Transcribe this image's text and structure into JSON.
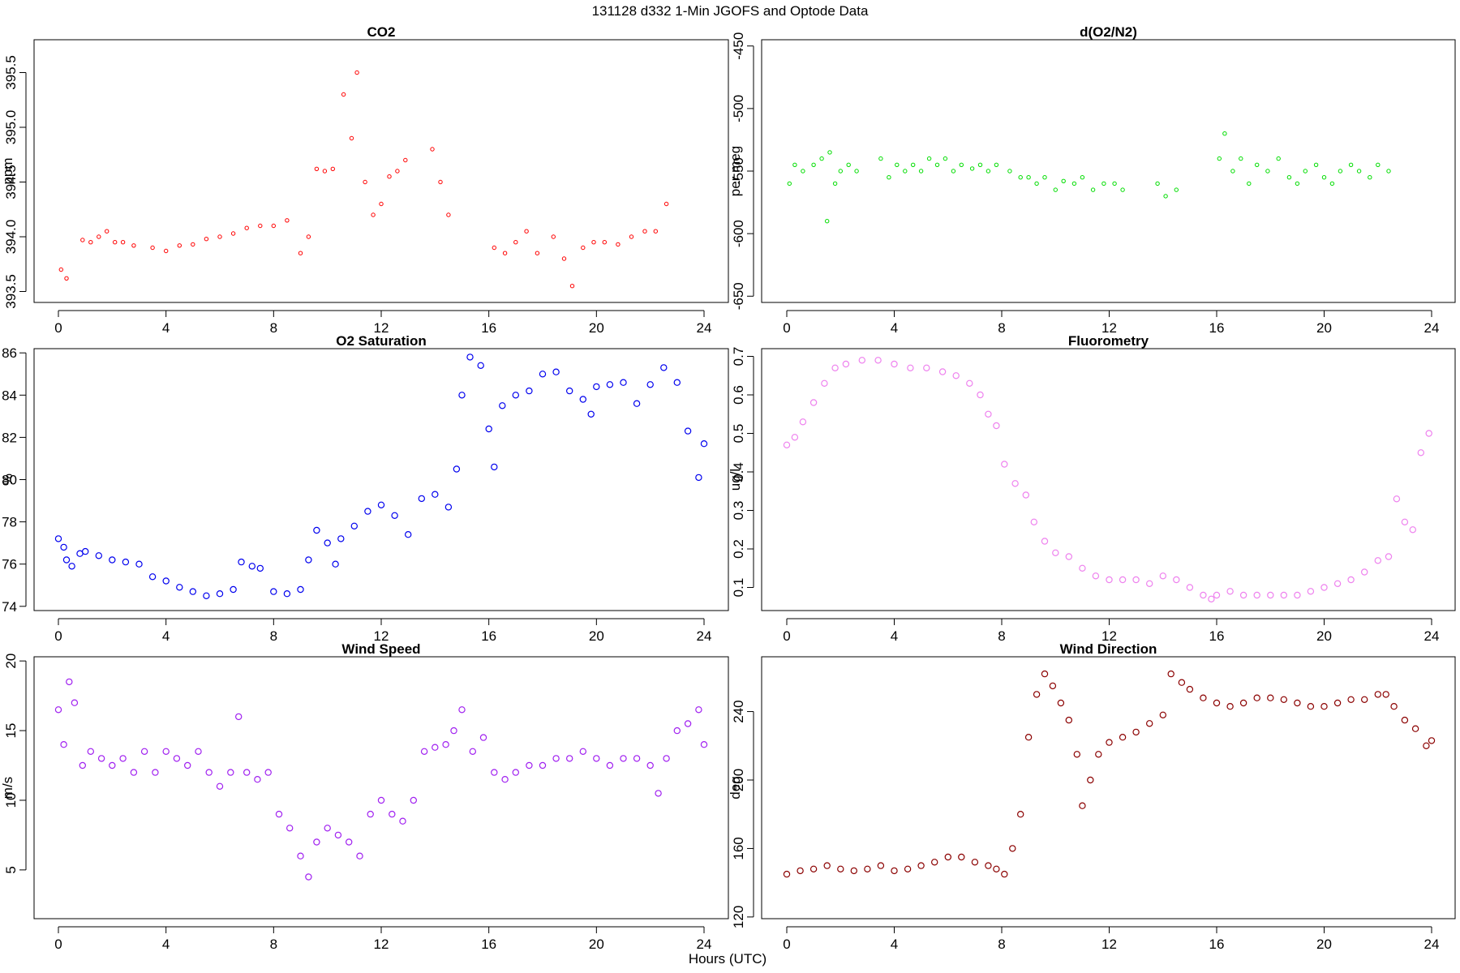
{
  "figure": {
    "title": "131128   d332   1-Min  JGOFS and Optode Data",
    "xlabel": "Hours (UTC)"
  },
  "chart_data": [
    {
      "id": "co2",
      "type": "scatter",
      "title": "CO2",
      "ylabel": "ppm",
      "color": "#ff0000",
      "marker": "small-open-circle",
      "xlim": [
        0,
        24
      ],
      "ylim": [
        393.4,
        395.8
      ],
      "xticks": [
        0,
        4,
        8,
        12,
        16,
        20,
        24
      ],
      "yticks": [
        393.5,
        394.0,
        394.5,
        395.0,
        395.5
      ],
      "ytick_labels": [
        "393.5",
        "394.0",
        "394.5",
        "395.0",
        "395.5"
      ],
      "ytick_rotation": "vertical",
      "x": [
        0.1,
        0.3,
        0.9,
        1.2,
        1.5,
        1.8,
        2.1,
        2.4,
        2.8,
        3.5,
        4.0,
        4.5,
        5.0,
        5.5,
        6.0,
        6.5,
        7.0,
        7.5,
        8.0,
        8.5,
        9.0,
        9.3,
        9.6,
        9.9,
        10.2,
        10.6,
        10.9,
        11.1,
        11.4,
        11.7,
        12.0,
        12.3,
        12.6,
        12.9,
        13.9,
        14.2,
        14.5,
        16.2,
        16.6,
        17.0,
        17.4,
        17.8,
        18.4,
        18.8,
        19.1,
        19.5,
        19.9,
        20.3,
        20.8,
        21.3,
        21.8,
        22.2,
        22.6
      ],
      "y": [
        393.7,
        393.62,
        393.97,
        393.95,
        394.0,
        394.05,
        393.95,
        393.95,
        393.92,
        393.9,
        393.87,
        393.92,
        393.93,
        393.98,
        394.0,
        394.03,
        394.08,
        394.1,
        394.1,
        394.15,
        393.85,
        394.0,
        394.62,
        394.6,
        394.62,
        395.3,
        394.9,
        395.5,
        394.5,
        394.2,
        394.3,
        394.55,
        394.6,
        394.7,
        394.8,
        394.5,
        394.2,
        393.9,
        393.85,
        393.95,
        394.05,
        393.85,
        394.0,
        393.8,
        393.55,
        393.9,
        393.95,
        393.95,
        393.93,
        394.0,
        394.05,
        394.05,
        394.3
      ]
    },
    {
      "id": "do2n2",
      "type": "scatter",
      "title": "d(O2/N2)",
      "ylabel": "per meg",
      "color": "#00dd00",
      "marker": "small-open-circle",
      "xlim": [
        0,
        24
      ],
      "ylim": [
        -655,
        -445
      ],
      "xticks": [
        0,
        4,
        8,
        12,
        16,
        20,
        24
      ],
      "yticks": [
        -650,
        -600,
        -550,
        -500,
        -450
      ],
      "ytick_labels": [
        "-650",
        "-600",
        "-550",
        "-500",
        "-450"
      ],
      "ytick_rotation": "vertical",
      "x": [
        0.1,
        0.3,
        0.6,
        1.0,
        1.3,
        1.5,
        1.6,
        1.8,
        2.0,
        2.3,
        2.6,
        3.5,
        3.8,
        4.1,
        4.4,
        4.7,
        5.0,
        5.3,
        5.6,
        5.9,
        6.2,
        6.5,
        6.9,
        7.2,
        7.5,
        7.8,
        8.3,
        8.7,
        9.0,
        9.3,
        9.6,
        10.0,
        10.3,
        10.7,
        11.0,
        11.4,
        11.8,
        12.2,
        12.5,
        13.8,
        14.1,
        14.5,
        16.1,
        16.3,
        16.6,
        16.9,
        17.2,
        17.5,
        17.9,
        18.3,
        18.7,
        19.0,
        19.3,
        19.7,
        20.0,
        20.3,
        20.6,
        21.0,
        21.3,
        21.7,
        22.0,
        22.4
      ],
      "y": [
        -560,
        -545,
        -550,
        -545,
        -540,
        -590,
        -535,
        -560,
        -550,
        -545,
        -550,
        -540,
        -555,
        -545,
        -550,
        -545,
        -550,
        -540,
        -545,
        -540,
        -550,
        -545,
        -548,
        -545,
        -550,
        -545,
        -550,
        -555,
        -555,
        -560,
        -555,
        -565,
        -558,
        -560,
        -555,
        -565,
        -560,
        -560,
        -565,
        -560,
        -570,
        -565,
        -540,
        -520,
        -550,
        -540,
        -560,
        -545,
        -550,
        -540,
        -555,
        -560,
        -550,
        -545,
        -555,
        -560,
        -550,
        -545,
        -550,
        -555,
        -545,
        -550
      ]
    },
    {
      "id": "o2sat",
      "type": "scatter",
      "title": "O2 Saturation",
      "ylabel": "%",
      "color": "#0000ee",
      "marker": "open-circle",
      "xlim": [
        0,
        24
      ],
      "ylim": [
        73.8,
        86.2
      ],
      "xticks": [
        0,
        4,
        8,
        12,
        16,
        20,
        24
      ],
      "yticks": [
        74,
        76,
        78,
        80,
        82,
        84,
        86
      ],
      "ytick_labels": [
        "74",
        "76",
        "78",
        "80",
        "82",
        "84",
        "86"
      ],
      "ytick_rotation": "horizontal",
      "x": [
        0,
        0.2,
        0.3,
        0.5,
        0.8,
        1.0,
        1.5,
        2.0,
        2.5,
        3.0,
        3.5,
        4.0,
        4.5,
        5.0,
        5.5,
        6.0,
        6.5,
        6.8,
        7.2,
        7.5,
        8.0,
        8.5,
        9.0,
        9.3,
        9.6,
        10.0,
        10.3,
        10.5,
        11.0,
        11.5,
        12.0,
        12.5,
        13.0,
        13.5,
        14.0,
        14.5,
        14.8,
        15.0,
        15.3,
        15.7,
        16.0,
        16.2,
        16.5,
        17.0,
        17.5,
        18.0,
        18.5,
        19.0,
        19.5,
        19.8,
        20.0,
        20.5,
        21.0,
        21.5,
        22.0,
        22.5,
        23.0,
        23.4,
        23.8,
        24.0
      ],
      "y": [
        77.2,
        76.8,
        76.2,
        75.9,
        76.5,
        76.6,
        76.4,
        76.2,
        76.1,
        76.0,
        75.4,
        75.2,
        74.9,
        74.7,
        74.5,
        74.6,
        74.8,
        76.1,
        75.9,
        75.8,
        74.7,
        74.6,
        74.8,
        76.2,
        77.6,
        77.0,
        76.0,
        77.2,
        77.8,
        78.5,
        78.8,
        78.3,
        77.4,
        79.1,
        79.3,
        78.7,
        80.5,
        84.0,
        85.8,
        85.4,
        82.4,
        80.6,
        83.5,
        84.0,
        84.2,
        85.0,
        85.1,
        84.2,
        83.8,
        83.1,
        84.4,
        84.5,
        84.6,
        83.6,
        84.5,
        85.3,
        84.6,
        82.3,
        80.1,
        81.7
      ]
    },
    {
      "id": "fluor",
      "type": "scatter",
      "title": "Fluorometry",
      "ylabel": "ug/l",
      "color": "#ee82ee",
      "marker": "open-circle",
      "xlim": [
        0,
        24
      ],
      "ylim": [
        0.04,
        0.72
      ],
      "xticks": [
        0,
        4,
        8,
        12,
        16,
        20,
        24
      ],
      "yticks": [
        0.1,
        0.2,
        0.3,
        0.4,
        0.5,
        0.6,
        0.7
      ],
      "ytick_labels": [
        "0.1",
        "0.2",
        "0.3",
        "0.4",
        "0.5",
        "0.6",
        "0.7"
      ],
      "ytick_rotation": "vertical",
      "x": [
        0,
        0.3,
        0.6,
        1.0,
        1.4,
        1.8,
        2.2,
        2.8,
        3.4,
        4.0,
        4.6,
        5.2,
        5.8,
        6.3,
        6.8,
        7.2,
        7.5,
        7.8,
        8.1,
        8.5,
        8.9,
        9.2,
        9.6,
        10.0,
        10.5,
        11.0,
        11.5,
        12.0,
        12.5,
        13.0,
        13.5,
        14.0,
        14.5,
        15.0,
        15.5,
        15.8,
        16.0,
        16.5,
        17.0,
        17.5,
        18.0,
        18.5,
        19.0,
        19.5,
        20.0,
        20.5,
        21.0,
        21.5,
        22.0,
        22.4,
        22.7,
        23.0,
        23.3,
        23.6,
        23.9
      ],
      "y": [
        0.47,
        0.49,
        0.53,
        0.58,
        0.63,
        0.67,
        0.68,
        0.69,
        0.69,
        0.68,
        0.67,
        0.67,
        0.66,
        0.65,
        0.63,
        0.6,
        0.55,
        0.52,
        0.42,
        0.37,
        0.34,
        0.27,
        0.22,
        0.19,
        0.18,
        0.15,
        0.13,
        0.12,
        0.12,
        0.12,
        0.11,
        0.13,
        0.12,
        0.1,
        0.08,
        0.07,
        0.08,
        0.09,
        0.08,
        0.08,
        0.08,
        0.08,
        0.08,
        0.09,
        0.1,
        0.11,
        0.12,
        0.14,
        0.17,
        0.18,
        0.33,
        0.27,
        0.25,
        0.45,
        0.5
      ]
    },
    {
      "id": "wspd",
      "type": "scatter",
      "title": "Wind Speed",
      "ylabel": "m/s",
      "color": "#a020f0",
      "marker": "open-circle",
      "xlim": [
        0,
        24
      ],
      "ylim": [
        1.5,
        20.3
      ],
      "xticks": [
        0,
        4,
        8,
        12,
        16,
        20,
        24
      ],
      "yticks": [
        5,
        10,
        15,
        20
      ],
      "ytick_labels": [
        "5",
        "10",
        "15",
        "20"
      ],
      "ytick_rotation": "vertical",
      "x": [
        0,
        0.2,
        0.4,
        0.6,
        0.9,
        1.2,
        1.6,
        2.0,
        2.4,
        2.8,
        3.2,
        3.6,
        4.0,
        4.4,
        4.8,
        5.2,
        5.6,
        6.0,
        6.4,
        6.7,
        7.0,
        7.4,
        7.8,
        8.2,
        8.6,
        9.0,
        9.3,
        9.6,
        10.0,
        10.4,
        10.8,
        11.2,
        11.6,
        12.0,
        12.4,
        12.8,
        13.2,
        13.6,
        14.0,
        14.4,
        14.7,
        15.0,
        15.4,
        15.8,
        16.2,
        16.6,
        17.0,
        17.5,
        18.0,
        18.5,
        19.0,
        19.5,
        20.0,
        20.5,
        21.0,
        21.5,
        22.0,
        22.3,
        22.6,
        23.0,
        23.4,
        23.8,
        24.0
      ],
      "y": [
        16.5,
        14.0,
        18.5,
        17.0,
        12.5,
        13.5,
        13.0,
        12.5,
        13.0,
        12.0,
        13.5,
        12.0,
        13.5,
        13.0,
        12.5,
        13.5,
        12.0,
        11.0,
        12.0,
        16.0,
        12.0,
        11.5,
        12.0,
        9.0,
        8.0,
        6.0,
        4.5,
        7.0,
        8.0,
        7.5,
        7.0,
        6.0,
        9.0,
        10.0,
        9.0,
        8.5,
        10.0,
        13.5,
        13.8,
        14.0,
        15.0,
        16.5,
        13.5,
        14.5,
        12.0,
        11.5,
        12.0,
        12.5,
        12.5,
        13.0,
        13.0,
        13.5,
        13.0,
        12.5,
        13.0,
        13.0,
        12.5,
        10.5,
        13.0,
        15.0,
        15.5,
        16.5,
        14.0
      ]
    },
    {
      "id": "wdir",
      "type": "scatter",
      "title": "Wind Direction",
      "ylabel": "deg",
      "color": "#8b0000",
      "marker": "open-circle",
      "xlim": [
        0,
        24
      ],
      "ylim": [
        119,
        272
      ],
      "xticks": [
        0,
        4,
        8,
        12,
        16,
        20,
        24
      ],
      "yticks": [
        120,
        160,
        200,
        240
      ],
      "ytick_labels": [
        "120",
        "160",
        "200",
        "240"
      ],
      "ytick_rotation": "vertical",
      "x": [
        0,
        0.5,
        1.0,
        1.5,
        2.0,
        2.5,
        3.0,
        3.5,
        4.0,
        4.5,
        5.0,
        5.5,
        6.0,
        6.5,
        7.0,
        7.5,
        7.8,
        8.1,
        8.4,
        8.7,
        9.0,
        9.3,
        9.6,
        9.9,
        10.2,
        10.5,
        10.8,
        11.0,
        11.3,
        11.6,
        12.0,
        12.5,
        13.0,
        13.5,
        14.0,
        14.3,
        14.7,
        15.0,
        15.5,
        16.0,
        16.5,
        17.0,
        17.5,
        18.0,
        18.5,
        19.0,
        19.5,
        20.0,
        20.5,
        21.0,
        21.5,
        22.0,
        22.3,
        22.6,
        23.0,
        23.4,
        23.8,
        24.0
      ],
      "y": [
        145,
        147,
        148,
        150,
        148,
        147,
        148,
        150,
        147,
        148,
        150,
        152,
        155,
        155,
        152,
        150,
        148,
        145,
        160,
        180,
        225,
        250,
        262,
        255,
        245,
        235,
        215,
        185,
        200,
        215,
        222,
        225,
        228,
        233,
        238,
        262,
        257,
        253,
        248,
        245,
        243,
        245,
        248,
        248,
        247,
        245,
        243,
        243,
        245,
        247,
        247,
        250,
        250,
        243,
        235,
        230,
        220,
        223
      ]
    }
  ]
}
